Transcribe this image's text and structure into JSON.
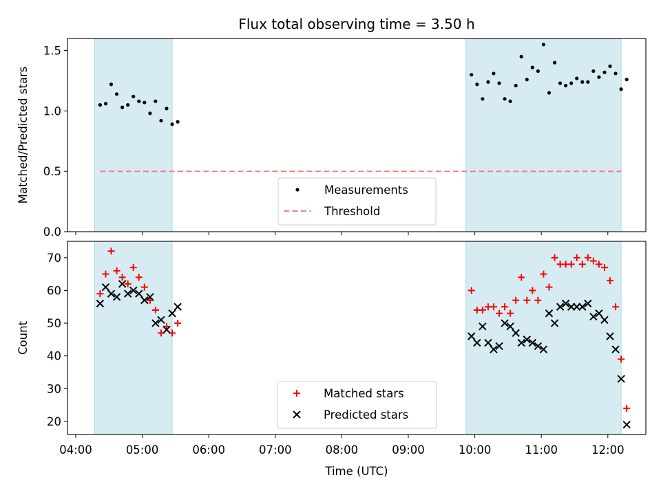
{
  "chart_data": [
    {
      "type": "scatter",
      "title": "Flux total observing time = 3.50 h",
      "xlabel": "",
      "ylabel": "Matched/Predicted stars",
      "ylim": [
        0,
        1.6
      ],
      "yticks": [
        "0.0",
        "0.5",
        "1.0",
        "1.5"
      ],
      "shaded_intervals": [
        [
          "04:17",
          "05:27"
        ],
        [
          "09:52",
          "12:12"
        ]
      ],
      "threshold": 0.5,
      "legend": {
        "position": "lower-center",
        "entries": [
          "Measurements",
          "Threshold"
        ]
      },
      "series": [
        {
          "name": "Measurements",
          "marker": "dot",
          "color": "#000000",
          "points": [
            [
              "04:22",
              1.05
            ],
            [
              "04:27",
              1.06
            ],
            [
              "04:32",
              1.22
            ],
            [
              "04:37",
              1.14
            ],
            [
              "04:42",
              1.03
            ],
            [
              "04:47",
              1.05
            ],
            [
              "04:52",
              1.12
            ],
            [
              "04:57",
              1.08
            ],
            [
              "05:02",
              1.07
            ],
            [
              "05:07",
              0.98
            ],
            [
              "05:12",
              1.08
            ],
            [
              "05:17",
              0.92
            ],
            [
              "05:22",
              1.02
            ],
            [
              "05:27",
              0.89
            ],
            [
              "05:32",
              0.91
            ],
            [
              "09:57",
              1.3
            ],
            [
              "10:02",
              1.22
            ],
            [
              "10:07",
              1.1
            ],
            [
              "10:12",
              1.24
            ],
            [
              "10:17",
              1.31
            ],
            [
              "10:22",
              1.23
            ],
            [
              "10:27",
              1.1
            ],
            [
              "10:32",
              1.08
            ],
            [
              "10:37",
              1.21
            ],
            [
              "10:42",
              1.45
            ],
            [
              "10:47",
              1.26
            ],
            [
              "10:52",
              1.36
            ],
            [
              "10:57",
              1.33
            ],
            [
              "11:02",
              1.55
            ],
            [
              "11:07",
              1.15
            ],
            [
              "11:12",
              1.4
            ],
            [
              "11:17",
              1.23
            ],
            [
              "11:22",
              1.21
            ],
            [
              "11:27",
              1.23
            ],
            [
              "11:32",
              1.27
            ],
            [
              "11:37",
              1.24
            ],
            [
              "11:42",
              1.24
            ],
            [
              "11:47",
              1.33
            ],
            [
              "11:52",
              1.28
            ],
            [
              "11:57",
              1.32
            ],
            [
              "12:02",
              1.37
            ],
            [
              "12:07",
              1.31
            ],
            [
              "12:12",
              1.18
            ],
            [
              "12:17",
              1.26
            ]
          ]
        },
        {
          "name": "Threshold",
          "marker": "dashed-line",
          "color": "#f08080",
          "points": [
            [
              "04:22",
              0.5
            ],
            [
              "12:12",
              0.5
            ]
          ]
        }
      ]
    },
    {
      "type": "scatter",
      "title": "",
      "xlabel": "Time (UTC)",
      "ylabel": "Count",
      "ylim": [
        16,
        75
      ],
      "yticks": [
        "20",
        "30",
        "40",
        "50",
        "60",
        "70"
      ],
      "xticks": [
        "04:00",
        "05:00",
        "06:00",
        "07:00",
        "08:00",
        "09:00",
        "10:00",
        "11:00",
        "12:00"
      ],
      "shaded_intervals": [
        [
          "04:17",
          "05:27"
        ],
        [
          "09:52",
          "12:12"
        ]
      ],
      "legend": {
        "position": "lower-center",
        "entries": [
          "Matched stars",
          "Predicted stars"
        ]
      },
      "series": [
        {
          "name": "Matched stars",
          "marker": "plus",
          "color": "#ff0000",
          "points": [
            [
              "04:22",
              59
            ],
            [
              "04:27",
              65
            ],
            [
              "04:32",
              72
            ],
            [
              "04:37",
              66
            ],
            [
              "04:42",
              64
            ],
            [
              "04:47",
              62
            ],
            [
              "04:52",
              67
            ],
            [
              "04:57",
              64
            ],
            [
              "05:02",
              61
            ],
            [
              "05:07",
              57
            ],
            [
              "05:12",
              54
            ],
            [
              "05:17",
              47
            ],
            [
              "05:22",
              49
            ],
            [
              "05:27",
              47
            ],
            [
              "05:32",
              50
            ],
            [
              "09:57",
              60
            ],
            [
              "10:02",
              54
            ],
            [
              "10:07",
              54
            ],
            [
              "10:12",
              55
            ],
            [
              "10:17",
              55
            ],
            [
              "10:22",
              53
            ],
            [
              "10:27",
              55
            ],
            [
              "10:32",
              53
            ],
            [
              "10:37",
              57
            ],
            [
              "10:42",
              64
            ],
            [
              "10:47",
              57
            ],
            [
              "10:52",
              60
            ],
            [
              "10:57",
              57
            ],
            [
              "11:02",
              65
            ],
            [
              "11:07",
              61
            ],
            [
              "11:12",
              70
            ],
            [
              "11:17",
              68
            ],
            [
              "11:22",
              68
            ],
            [
              "11:27",
              68
            ],
            [
              "11:32",
              70
            ],
            [
              "11:37",
              68
            ],
            [
              "11:42",
              70
            ],
            [
              "11:47",
              69
            ],
            [
              "11:52",
              68
            ],
            [
              "11:57",
              67
            ],
            [
              "12:02",
              63
            ],
            [
              "12:07",
              55
            ],
            [
              "12:12",
              39
            ],
            [
              "12:17",
              24
            ]
          ]
        },
        {
          "name": "Predicted stars",
          "marker": "x",
          "color": "#000000",
          "points": [
            [
              "04:22",
              56
            ],
            [
              "04:27",
              61
            ],
            [
              "04:32",
              59
            ],
            [
              "04:37",
              58
            ],
            [
              "04:42",
              62
            ],
            [
              "04:47",
              59
            ],
            [
              "04:52",
              60
            ],
            [
              "04:57",
              59
            ],
            [
              "05:02",
              57
            ],
            [
              "05:07",
              58
            ],
            [
              "05:12",
              50
            ],
            [
              "05:17",
              51
            ],
            [
              "05:22",
              48
            ],
            [
              "05:27",
              53
            ],
            [
              "05:32",
              55
            ],
            [
              "09:57",
              46
            ],
            [
              "10:02",
              44
            ],
            [
              "10:07",
              49
            ],
            [
              "10:12",
              44
            ],
            [
              "10:17",
              42
            ],
            [
              "10:22",
              43
            ],
            [
              "10:27",
              50
            ],
            [
              "10:32",
              49
            ],
            [
              "10:37",
              47
            ],
            [
              "10:42",
              44
            ],
            [
              "10:47",
              45
            ],
            [
              "10:52",
              44
            ],
            [
              "10:57",
              43
            ],
            [
              "11:02",
              42
            ],
            [
              "11:07",
              53
            ],
            [
              "11:12",
              50
            ],
            [
              "11:17",
              55
            ],
            [
              "11:22",
              56
            ],
            [
              "11:27",
              55
            ],
            [
              "11:32",
              55
            ],
            [
              "11:37",
              55
            ],
            [
              "11:42",
              56
            ],
            [
              "11:47",
              52
            ],
            [
              "11:52",
              53
            ],
            [
              "11:57",
              51
            ],
            [
              "12:02",
              46
            ],
            [
              "12:07",
              42
            ],
            [
              "12:12",
              33
            ],
            [
              "12:17",
              19
            ]
          ]
        }
      ]
    }
  ]
}
